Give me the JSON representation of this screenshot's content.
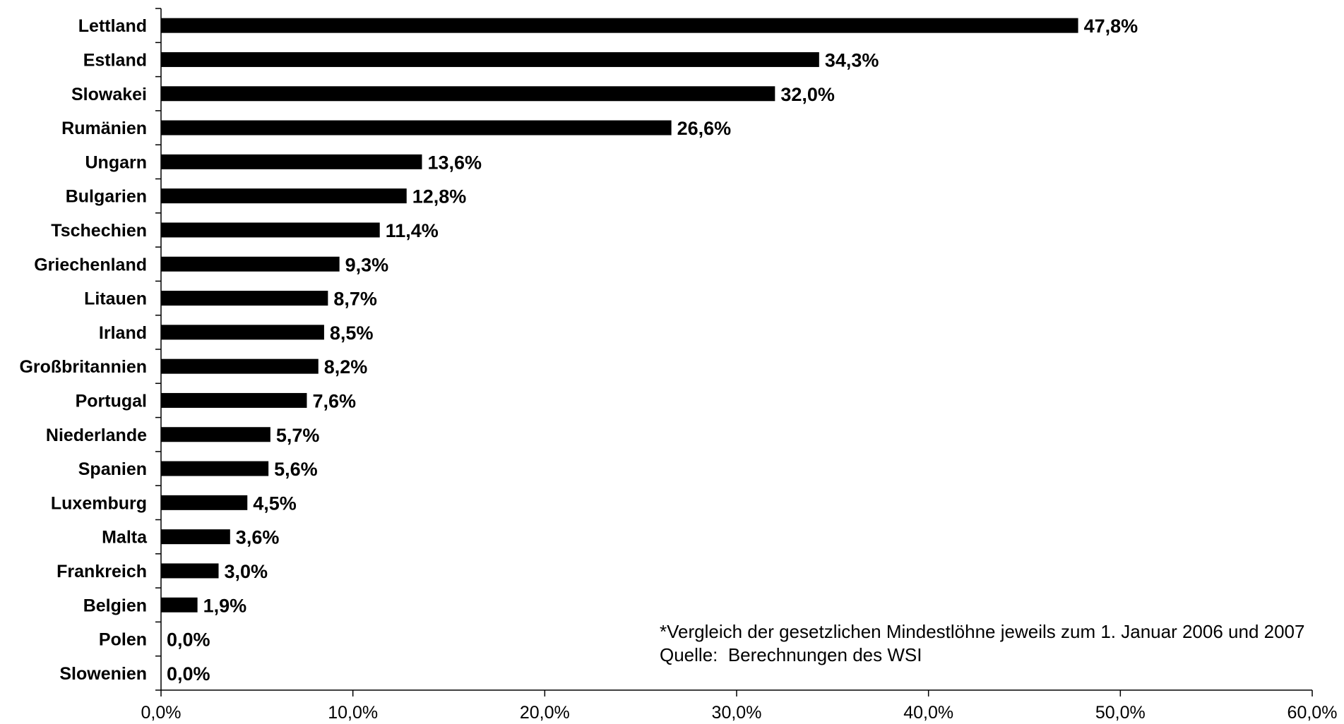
{
  "chart_data": {
    "type": "bar",
    "orientation": "horizontal",
    "categories": [
      "Lettland",
      "Estland",
      "Slowakei",
      "Rumänien",
      "Ungarn",
      "Bulgarien",
      "Tschechien",
      "Griechenland",
      "Litauen",
      "Irland",
      "Großbritannien",
      "Portugal",
      "Niederlande",
      "Spanien",
      "Luxemburg",
      "Malta",
      "Frankreich",
      "Belgien",
      "Polen",
      "Slowenien"
    ],
    "values": [
      47.8,
      34.3,
      32.0,
      26.6,
      13.6,
      12.8,
      11.4,
      9.3,
      8.7,
      8.5,
      8.2,
      7.6,
      5.7,
      5.6,
      4.5,
      3.6,
      3.0,
      1.9,
      0.0,
      0.0
    ],
    "value_labels": [
      "47,8%",
      "34,3%",
      "32,0%",
      "26,6%",
      "13,6%",
      "12,8%",
      "11,4%",
      "9,3%",
      "8,7%",
      "8,5%",
      "8,2%",
      "7,6%",
      "5,7%",
      "5,6%",
      "4,5%",
      "3,6%",
      "3,0%",
      "1,9%",
      "0,0%",
      "0,0%"
    ],
    "xlim": [
      0,
      60
    ],
    "xticks": [
      0,
      10,
      20,
      30,
      40,
      50,
      60
    ],
    "xtick_labels": [
      "0,0%",
      "10,0%",
      "20,0%",
      "30,0%",
      "40,0%",
      "50,0%",
      "60,0%"
    ],
    "title": "",
    "xlabel": "",
    "ylabel": "",
    "grid": false,
    "bar_color": "#000000"
  },
  "footnote": {
    "line1": "*Vergleich der gesetzlichen Mindestlöhne jeweils zum 1. Januar 2006 und 2007",
    "line2": "Quelle:  Berechnungen des WSI"
  }
}
